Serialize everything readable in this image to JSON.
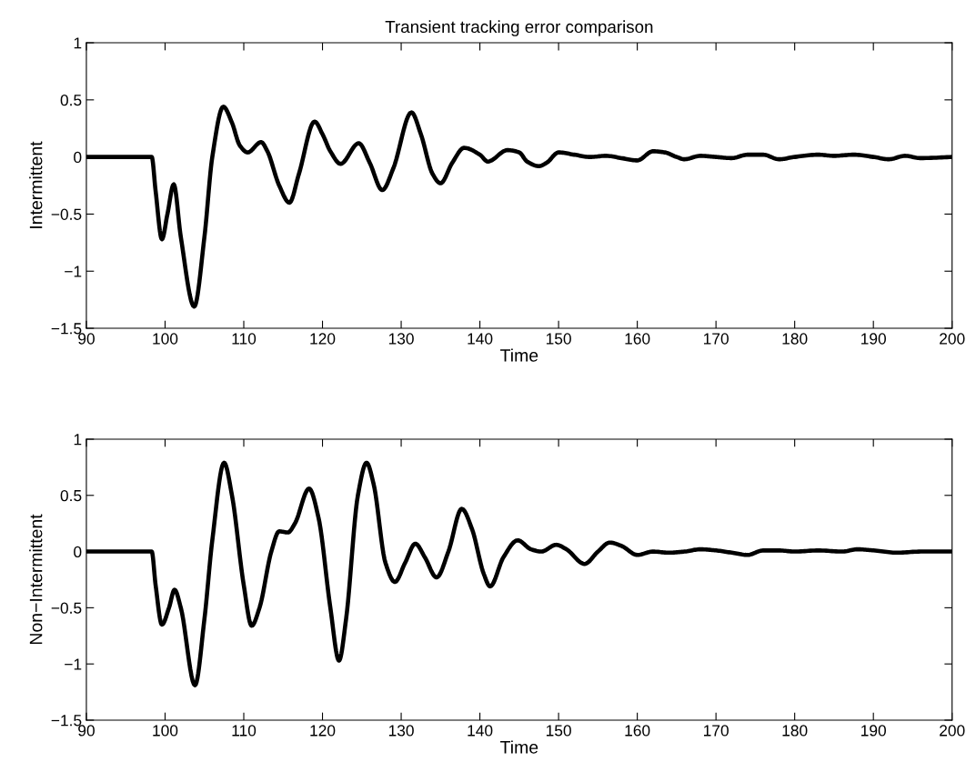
{
  "chart_data": [
    {
      "type": "line",
      "title": "Transient tracking error comparison",
      "xlabel": "Time",
      "ylabel": "Intermittent",
      "xlim": [
        90,
        200
      ],
      "xticks": [
        90,
        100,
        110,
        120,
        130,
        140,
        150,
        160,
        170,
        180,
        190,
        200
      ],
      "ylim": [
        -1.5,
        1
      ],
      "yticks": [
        -1.5,
        -1,
        -0.5,
        0,
        0.5,
        1
      ],
      "grid": false,
      "series": [
        {
          "color": "#000000",
          "x": [
            90,
            98.3,
            98.8,
            99.6,
            100.3,
            101.1,
            102,
            103.7,
            105,
            106,
            107.4,
            108.5,
            109.5,
            110.5,
            112.2,
            113,
            114.5,
            115.8,
            117,
            119,
            120,
            121,
            122.3,
            124.6,
            126,
            127.6,
            129,
            131.3,
            132.5,
            134,
            135,
            136.5,
            138,
            140,
            141,
            143.5,
            145,
            146,
            147.5,
            148.5,
            150,
            152,
            154,
            156,
            158,
            160,
            162,
            163.5,
            165,
            166,
            168,
            170,
            172,
            174,
            176,
            178,
            180,
            183,
            185,
            187.5,
            190,
            192,
            194,
            196,
            200
          ],
          "values": [
            0,
            0,
            -0.3,
            -0.72,
            -0.5,
            -0.24,
            -0.7,
            -1.31,
            -0.7,
            0,
            0.44,
            0.3,
            0.1,
            0.04,
            0.13,
            0.05,
            -0.25,
            -0.4,
            -0.15,
            0.31,
            0.2,
            0.05,
            -0.06,
            0.12,
            -0.05,
            -0.29,
            -0.1,
            0.39,
            0.2,
            -0.15,
            -0.23,
            -0.05,
            0.08,
            0.02,
            -0.04,
            0.06,
            0.04,
            -0.04,
            -0.08,
            -0.05,
            0.04,
            0.02,
            0,
            0.01,
            -0.01,
            -0.03,
            0.05,
            0.04,
            0,
            -0.02,
            0.01,
            0,
            -0.01,
            0.02,
            0.02,
            -0.02,
            0,
            0.02,
            0.01,
            0.02,
            0,
            -0.02,
            0.01,
            -0.01,
            0
          ]
        }
      ]
    },
    {
      "type": "line",
      "xlabel": "Time",
      "ylabel": "Non−Intermittent",
      "xlim": [
        90,
        200
      ],
      "xticks": [
        90,
        100,
        110,
        120,
        130,
        140,
        150,
        160,
        170,
        180,
        190,
        200
      ],
      "ylim": [
        -1.5,
        1
      ],
      "yticks": [
        -1.5,
        -1,
        -0.5,
        0,
        0.5,
        1
      ],
      "grid": false,
      "series": [
        {
          "color": "#000000",
          "x": [
            90,
            98.3,
            98.8,
            99.6,
            100.5,
            101.2,
            102,
            103.8,
            105,
            106,
            107.5,
            108.5,
            110,
            111,
            112,
            113.5,
            114.5,
            115.6,
            116.5,
            118.3,
            119.5,
            121,
            122.1,
            123,
            124.5,
            125.6,
            126.5,
            128,
            129.2,
            130.5,
            131.8,
            133,
            134.5,
            136,
            137.7,
            139,
            140.5,
            141.3,
            143,
            144.8,
            146.5,
            147.8,
            149.7,
            151,
            153.3,
            155,
            156.5,
            158,
            160,
            162,
            164,
            166,
            168,
            170,
            172,
            174,
            176,
            178,
            180,
            183,
            186,
            188,
            190,
            193,
            196,
            200
          ],
          "values": [
            0,
            0,
            -0.3,
            -0.65,
            -0.5,
            -0.34,
            -0.5,
            -1.19,
            -0.6,
            0.1,
            0.79,
            0.5,
            -0.3,
            -0.66,
            -0.5,
            0,
            0.18,
            0.17,
            0.25,
            0.56,
            0.3,
            -0.5,
            -0.97,
            -0.6,
            0.5,
            0.79,
            0.6,
            -0.1,
            -0.27,
            -0.1,
            0.07,
            -0.05,
            -0.23,
            0,
            0.38,
            0.2,
            -0.2,
            -0.31,
            -0.05,
            0.1,
            0.02,
            0,
            0.06,
            0.02,
            -0.11,
            0,
            0.08,
            0.05,
            -0.03,
            0,
            -0.01,
            0,
            0.02,
            0.01,
            -0.01,
            -0.03,
            0.01,
            0.01,
            0,
            0.01,
            0,
            0.02,
            0.01,
            -0.01,
            0,
            0
          ]
        }
      ]
    }
  ]
}
